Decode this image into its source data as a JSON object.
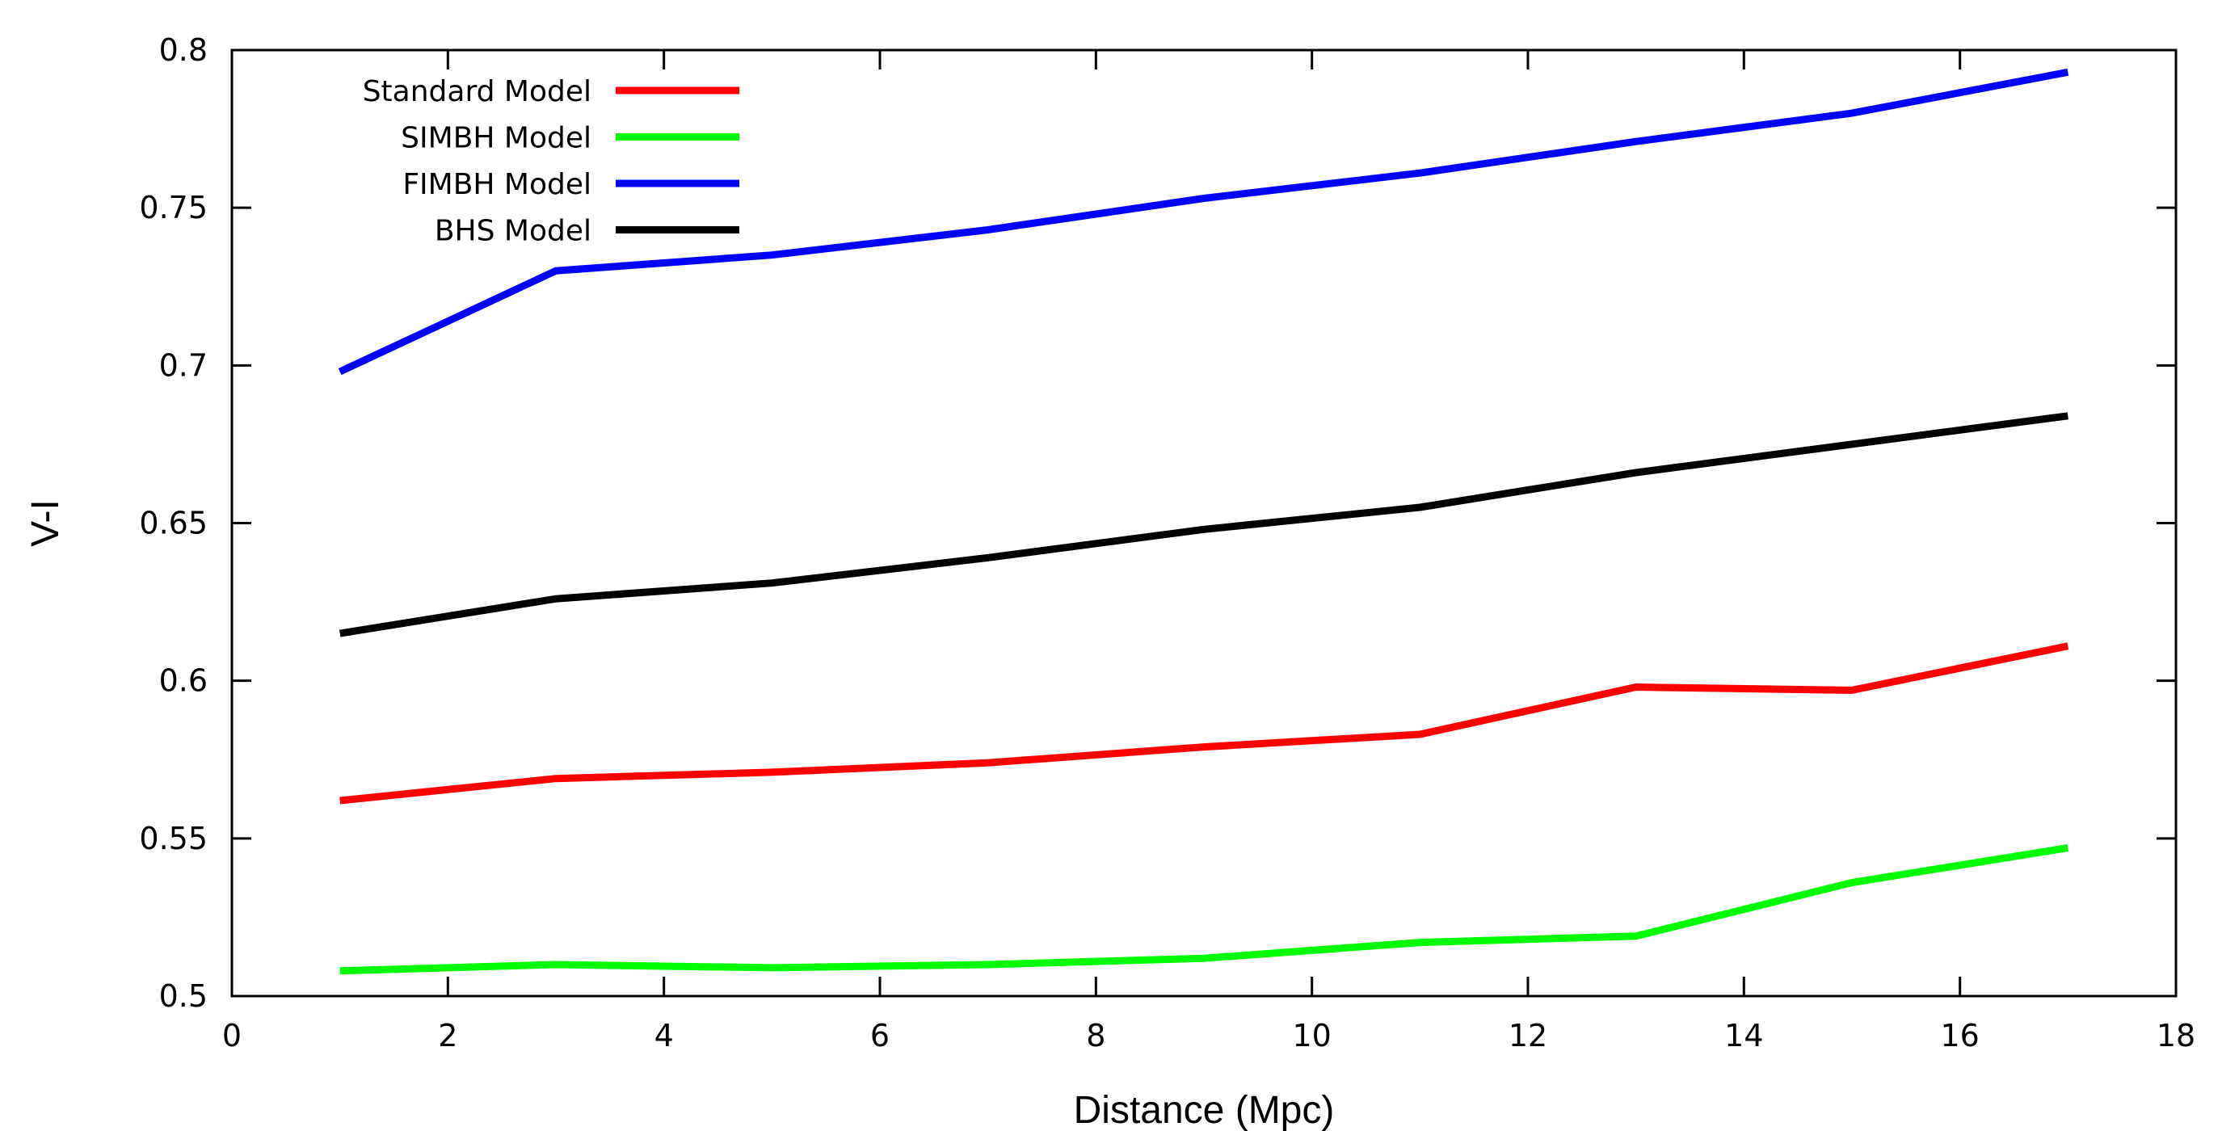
{
  "chart_data": {
    "type": "line",
    "xlabel": "Distance (Mpc)",
    "ylabel": "V-I",
    "xlim": [
      0,
      18
    ],
    "ylim": [
      0.5,
      0.8
    ],
    "x_ticks": [
      "0",
      "2",
      "4",
      "6",
      "8",
      "10",
      "12",
      "14",
      "16",
      "18"
    ],
    "y_ticks": [
      "0.5",
      "0.55",
      "0.6",
      "0.65",
      "0.7",
      "0.75",
      "0.8"
    ],
    "x": [
      1,
      3,
      5,
      7,
      9,
      11,
      13,
      15,
      17
    ],
    "legend_position": "top-left",
    "grid": false,
    "series": [
      {
        "name": "Standard Model",
        "color": "#ff0000",
        "values": [
          0.562,
          0.569,
          0.571,
          0.574,
          0.579,
          0.583,
          0.598,
          0.597,
          0.611
        ]
      },
      {
        "name": "SIMBH Model",
        "color": "#00ff00",
        "values": [
          0.508,
          0.51,
          0.509,
          0.51,
          0.512,
          0.517,
          0.519,
          0.536,
          0.547
        ]
      },
      {
        "name": "FIMBH Model",
        "color": "#0000ff",
        "values": [
          0.698,
          0.73,
          0.735,
          0.743,
          0.753,
          0.761,
          0.771,
          0.78,
          0.793
        ]
      },
      {
        "name": "BHS Model",
        "color": "#000000",
        "values": [
          0.615,
          0.626,
          0.631,
          0.639,
          0.648,
          0.655,
          0.666,
          0.675,
          0.684
        ]
      }
    ]
  }
}
